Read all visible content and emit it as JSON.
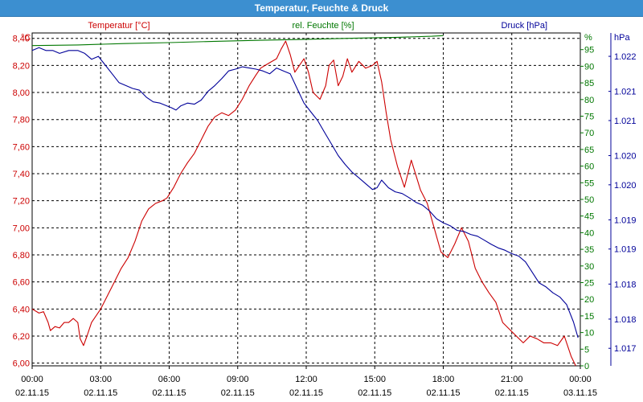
{
  "window": {
    "title": "Temperatur, Feuchte & Druck"
  },
  "colors": {
    "temperature": "#cc0000",
    "humidity": "#007700",
    "pressure": "#000099",
    "title_bar": "#3c8fd0",
    "grid": "#000000"
  },
  "chart_data": {
    "type": "line",
    "title": "Temperatur, Feuchte & Druck",
    "grid": true,
    "series_labels": {
      "temperature": "Temperatur [°C]",
      "humidity": "rel. Feuchte [%]",
      "pressure": "Druck [hPa]"
    },
    "axes": {
      "left": {
        "unit": "°C",
        "ylim": [
          5.98,
          8.44
        ],
        "ticks": [
          "8,40",
          "8,20",
          "8,00",
          "7,80",
          "7,60",
          "7,40",
          "7,20",
          "7,00",
          "6,80",
          "6,60",
          "6,40",
          "6,20",
          "6,00"
        ],
        "tick_values": [
          8.4,
          8.2,
          8.0,
          7.8,
          7.6,
          7.4,
          7.2,
          7.0,
          6.8,
          6.6,
          6.4,
          6.2,
          6.0
        ]
      },
      "right1": {
        "unit": "%",
        "ylim": [
          0,
          100
        ],
        "ticks": [
          "95",
          "90",
          "85",
          "80",
          "75",
          "70",
          "65",
          "60",
          "55",
          "50",
          "45",
          "40",
          "35",
          "30",
          "25",
          "20",
          "15",
          "10",
          "5",
          "0"
        ],
        "tick_values": [
          95,
          90,
          85,
          80,
          75,
          70,
          65,
          60,
          55,
          50,
          45,
          40,
          35,
          30,
          25,
          20,
          15,
          10,
          5,
          0
        ]
      },
      "right2": {
        "unit": "hPa",
        "ylim": [
          1016.8,
          1022.5
        ],
        "ticks": [
          "1.022",
          "1.021",
          "1.021",
          "1.020",
          "1.020",
          "1.019",
          "1.019",
          "1.018",
          "1.018",
          "1.017"
        ],
        "tick_values": [
          1022.1,
          1021.5,
          1021.0,
          1020.4,
          1019.9,
          1019.3,
          1018.8,
          1018.2,
          1017.6,
          1017.1
        ]
      }
    },
    "x_ticks": [
      {
        "hour": 0,
        "time": "00:00",
        "date": "02.11.15"
      },
      {
        "hour": 3,
        "time": "03:00",
        "date": "02.11.15"
      },
      {
        "hour": 6,
        "time": "06:00",
        "date": "02.11.15"
      },
      {
        "hour": 9,
        "time": "09:00",
        "date": "02.11.15"
      },
      {
        "hour": 12,
        "time": "12:00",
        "date": "02.11.15"
      },
      {
        "hour": 15,
        "time": "15:00",
        "date": "02.11.15"
      },
      {
        "hour": 18,
        "time": "18:00",
        "date": "02.11.15"
      },
      {
        "hour": 21,
        "time": "21:00",
        "date": "02.11.15"
      },
      {
        "hour": 24,
        "time": "00:00",
        "date": "03.11.15"
      }
    ],
    "xlim": [
      0,
      24
    ],
    "series": [
      {
        "name": "Temperatur [°C]",
        "axis": "left",
        "color": "#cc0000",
        "points": [
          [
            0,
            6.4
          ],
          [
            0.3,
            6.37
          ],
          [
            0.5,
            6.38
          ],
          [
            0.7,
            6.3
          ],
          [
            0.8,
            6.24
          ],
          [
            1.0,
            6.27
          ],
          [
            1.2,
            6.26
          ],
          [
            1.4,
            6.3
          ],
          [
            1.6,
            6.3
          ],
          [
            1.8,
            6.33
          ],
          [
            2.0,
            6.3
          ],
          [
            2.1,
            6.18
          ],
          [
            2.25,
            6.13
          ],
          [
            2.4,
            6.2
          ],
          [
            2.6,
            6.3
          ],
          [
            2.8,
            6.35
          ],
          [
            3.0,
            6.4
          ],
          [
            3.3,
            6.5
          ],
          [
            3.6,
            6.6
          ],
          [
            3.9,
            6.7
          ],
          [
            4.2,
            6.78
          ],
          [
            4.5,
            6.9
          ],
          [
            4.8,
            7.05
          ],
          [
            5.1,
            7.14
          ],
          [
            5.4,
            7.18
          ],
          [
            5.7,
            7.2
          ],
          [
            5.9,
            7.22
          ],
          [
            6.2,
            7.3
          ],
          [
            6.5,
            7.4
          ],
          [
            6.8,
            7.48
          ],
          [
            7.1,
            7.55
          ],
          [
            7.4,
            7.65
          ],
          [
            7.7,
            7.75
          ],
          [
            8.0,
            7.82
          ],
          [
            8.3,
            7.85
          ],
          [
            8.6,
            7.83
          ],
          [
            8.9,
            7.87
          ],
          [
            9.2,
            7.95
          ],
          [
            9.5,
            8.05
          ],
          [
            9.8,
            8.13
          ],
          [
            10.0,
            8.18
          ],
          [
            10.2,
            8.2
          ],
          [
            10.4,
            8.22
          ],
          [
            10.7,
            8.25
          ],
          [
            10.9,
            8.32
          ],
          [
            11.1,
            8.38
          ],
          [
            11.3,
            8.28
          ],
          [
            11.5,
            8.15
          ],
          [
            11.7,
            8.2
          ],
          [
            11.9,
            8.25
          ],
          [
            12.1,
            8.15
          ],
          [
            12.3,
            8.0
          ],
          [
            12.6,
            7.95
          ],
          [
            12.85,
            8.05
          ],
          [
            13.0,
            8.2
          ],
          [
            13.2,
            8.24
          ],
          [
            13.4,
            8.05
          ],
          [
            13.6,
            8.12
          ],
          [
            13.8,
            8.25
          ],
          [
            14.0,
            8.15
          ],
          [
            14.3,
            8.23
          ],
          [
            14.6,
            8.18
          ],
          [
            14.9,
            8.2
          ],
          [
            15.1,
            8.23
          ],
          [
            15.3,
            8.08
          ],
          [
            15.5,
            7.85
          ],
          [
            15.7,
            7.65
          ],
          [
            16.0,
            7.45
          ],
          [
            16.3,
            7.3
          ],
          [
            16.6,
            7.5
          ],
          [
            17.0,
            7.28
          ],
          [
            17.3,
            7.18
          ],
          [
            17.6,
            7.0
          ],
          [
            17.9,
            6.82
          ],
          [
            18.2,
            6.78
          ],
          [
            18.5,
            6.88
          ],
          [
            18.8,
            7.0
          ],
          [
            19.1,
            6.9
          ],
          [
            19.4,
            6.7
          ],
          [
            19.7,
            6.6
          ],
          [
            20.0,
            6.52
          ],
          [
            20.3,
            6.45
          ],
          [
            20.6,
            6.3
          ],
          [
            20.9,
            6.25
          ],
          [
            21.2,
            6.2
          ],
          [
            21.5,
            6.15
          ],
          [
            21.8,
            6.2
          ],
          [
            22.1,
            6.18
          ],
          [
            22.4,
            6.15
          ],
          [
            22.7,
            6.15
          ],
          [
            23.0,
            6.13
          ],
          [
            23.3,
            6.2
          ],
          [
            23.6,
            6.05
          ],
          [
            23.8,
            5.98
          ]
        ]
      },
      {
        "name": "rel. Feuchte [%]",
        "axis": "right1",
        "color": "#007700",
        "points": [
          [
            0,
            96.2
          ],
          [
            2,
            96.4
          ],
          [
            4,
            96.8
          ],
          [
            6,
            97.1
          ],
          [
            8,
            97.5
          ],
          [
            10,
            97.8
          ],
          [
            12,
            98.1
          ],
          [
            14,
            98.4
          ],
          [
            16,
            98.7
          ],
          [
            17.5,
            99.0
          ],
          [
            18,
            99.2
          ]
        ]
      },
      {
        "name": "Druck [hPa]",
        "axis": "right2",
        "color": "#000099",
        "points": [
          [
            0,
            1022.2
          ],
          [
            0.3,
            1022.25
          ],
          [
            0.6,
            1022.2
          ],
          [
            0.9,
            1022.2
          ],
          [
            1.2,
            1022.15
          ],
          [
            1.6,
            1022.2
          ],
          [
            2.0,
            1022.2
          ],
          [
            2.3,
            1022.15
          ],
          [
            2.6,
            1022.05
          ],
          [
            2.9,
            1022.1
          ],
          [
            3.2,
            1021.95
          ],
          [
            3.5,
            1021.8
          ],
          [
            3.8,
            1021.65
          ],
          [
            4.1,
            1021.6
          ],
          [
            4.4,
            1021.55
          ],
          [
            4.7,
            1021.52
          ],
          [
            5.0,
            1021.4
          ],
          [
            5.3,
            1021.32
          ],
          [
            5.6,
            1021.3
          ],
          [
            5.9,
            1021.25
          ],
          [
            6.1,
            1021.22
          ],
          [
            6.3,
            1021.18
          ],
          [
            6.5,
            1021.25
          ],
          [
            6.8,
            1021.3
          ],
          [
            7.1,
            1021.28
          ],
          [
            7.4,
            1021.35
          ],
          [
            7.7,
            1021.5
          ],
          [
            8.0,
            1021.6
          ],
          [
            8.3,
            1021.72
          ],
          [
            8.6,
            1021.85
          ],
          [
            8.9,
            1021.88
          ],
          [
            9.2,
            1021.92
          ],
          [
            9.5,
            1021.9
          ],
          [
            9.8,
            1021.88
          ],
          [
            10.1,
            1021.85
          ],
          [
            10.4,
            1021.8
          ],
          [
            10.7,
            1021.9
          ],
          [
            11.0,
            1021.85
          ],
          [
            11.3,
            1021.8
          ],
          [
            11.6,
            1021.55
          ],
          [
            11.9,
            1021.3
          ],
          [
            12.2,
            1021.15
          ],
          [
            12.5,
            1021.0
          ],
          [
            12.8,
            1020.8
          ],
          [
            13.1,
            1020.6
          ],
          [
            13.4,
            1020.4
          ],
          [
            13.7,
            1020.25
          ],
          [
            14.0,
            1020.12
          ],
          [
            14.3,
            1020.02
          ],
          [
            14.6,
            1019.92
          ],
          [
            14.9,
            1019.82
          ],
          [
            15.1,
            1019.85
          ],
          [
            15.3,
            1019.98
          ],
          [
            15.6,
            1019.85
          ],
          [
            15.9,
            1019.78
          ],
          [
            16.2,
            1019.75
          ],
          [
            16.5,
            1019.68
          ],
          [
            16.8,
            1019.6
          ],
          [
            17.1,
            1019.55
          ],
          [
            17.4,
            1019.45
          ],
          [
            17.7,
            1019.32
          ],
          [
            18.0,
            1019.25
          ],
          [
            18.3,
            1019.2
          ],
          [
            18.6,
            1019.12
          ],
          [
            18.9,
            1019.1
          ],
          [
            19.2,
            1019.05
          ],
          [
            19.5,
            1019.02
          ],
          [
            19.8,
            1018.95
          ],
          [
            20.1,
            1018.88
          ],
          [
            20.4,
            1018.82
          ],
          [
            20.7,
            1018.78
          ],
          [
            21.0,
            1018.72
          ],
          [
            21.3,
            1018.68
          ],
          [
            21.6,
            1018.58
          ],
          [
            21.9,
            1018.4
          ],
          [
            22.2,
            1018.22
          ],
          [
            22.5,
            1018.15
          ],
          [
            22.8,
            1018.05
          ],
          [
            23.1,
            1017.98
          ],
          [
            23.4,
            1017.85
          ],
          [
            23.7,
            1017.55
          ],
          [
            23.9,
            1017.28
          ]
        ]
      }
    ]
  }
}
